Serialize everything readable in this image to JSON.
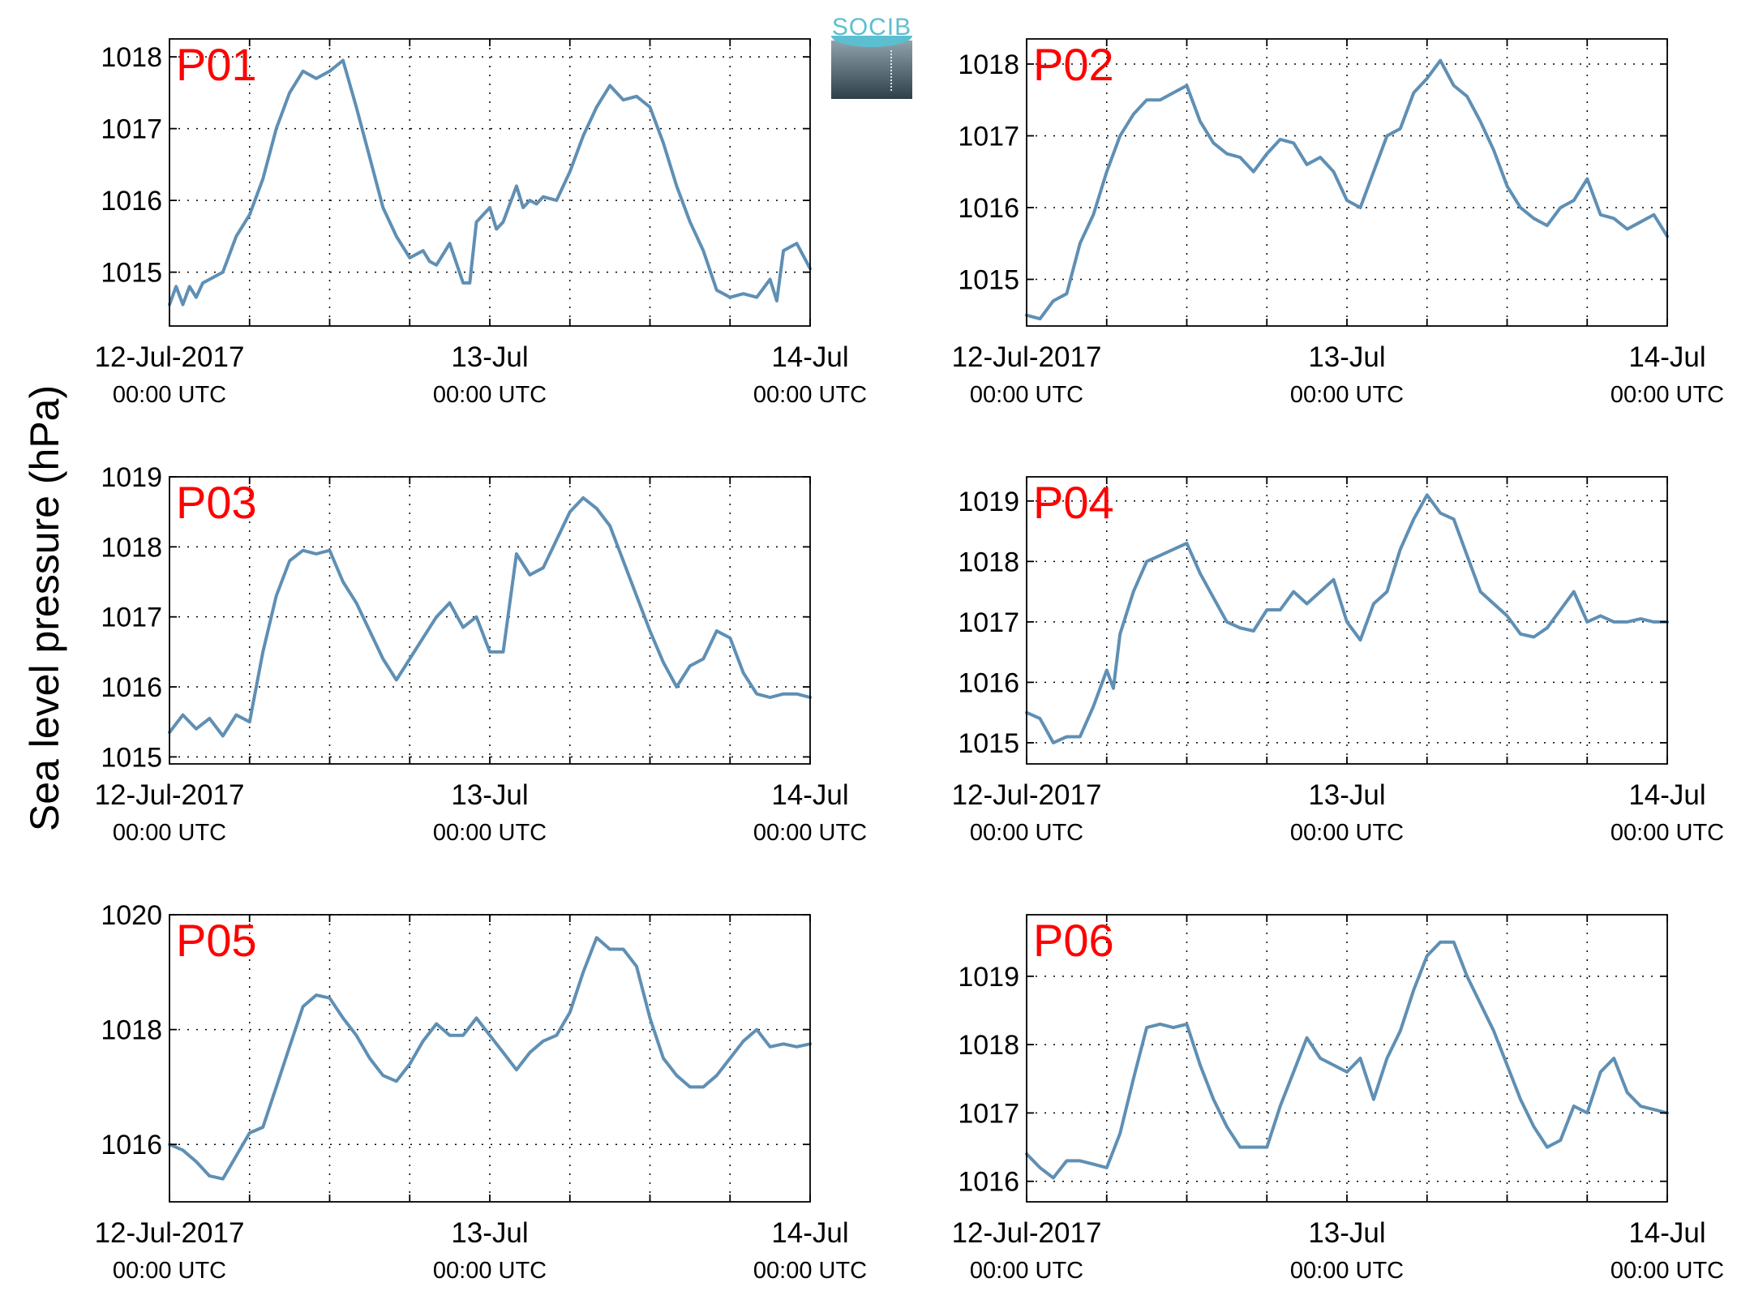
{
  "ylabel": "Sea level pressure (hPa)",
  "logo": {
    "text": "SOCIB"
  },
  "colors": {
    "line": "#5f8fb4",
    "panel_label": "#ff0000",
    "grid": "#000000"
  },
  "x_ticks": [
    {
      "date": "12-Jul-2017",
      "time": "00:00 UTC",
      "hour": 0
    },
    {
      "date": "13-Jul",
      "time": "00:00 UTC",
      "hour": 24
    },
    {
      "date": "14-Jul",
      "time": "00:00 UTC",
      "hour": 48
    }
  ],
  "chart_data": [
    {
      "type": "line",
      "title": "P01",
      "x_unit": "hours since 12-Jul-2017 00:00 UTC",
      "xlim": [
        0,
        48
      ],
      "ylim": [
        1014.25,
        1018.25
      ],
      "yticks": [
        1015,
        1016,
        1017,
        1018
      ],
      "grid": true,
      "series": [
        {
          "x": [
            0,
            0.5,
            1,
            1.5,
            2,
            2.5,
            3,
            4,
            5,
            6,
            7,
            8,
            9,
            10,
            11,
            12,
            13,
            14,
            15,
            16,
            17,
            18,
            19,
            19.5,
            20,
            21,
            22,
            22.5,
            23,
            24,
            24.5,
            25,
            26,
            26.5,
            27,
            27.5,
            28,
            29,
            30,
            31,
            32,
            33,
            34,
            35,
            36,
            37,
            38,
            39,
            40,
            41,
            42,
            43,
            44,
            45,
            45.5,
            46,
            46.5,
            47,
            48
          ],
          "y": [
            1014.55,
            1014.8,
            1014.55,
            1014.8,
            1014.65,
            1014.85,
            1014.9,
            1015.0,
            1015.5,
            1015.8,
            1016.3,
            1017.0,
            1017.5,
            1017.8,
            1017.7,
            1017.8,
            1017.95,
            1017.3,
            1016.6,
            1015.9,
            1015.5,
            1015.2,
            1015.3,
            1015.15,
            1015.1,
            1015.4,
            1014.85,
            1014.85,
            1015.7,
            1015.9,
            1015.6,
            1015.7,
            1016.2,
            1015.9,
            1016.0,
            1015.95,
            1016.05,
            1016.0,
            1016.4,
            1016.9,
            1017.3,
            1017.6,
            1017.4,
            1017.45,
            1017.3,
            1016.8,
            1016.2,
            1015.7,
            1015.3,
            1014.75,
            1014.65,
            1014.7,
            1014.65,
            1014.9,
            1014.6,
            1015.3,
            1015.35,
            1015.4,
            1015.05
          ]
        }
      ]
    },
    {
      "type": "line",
      "title": "P02",
      "x_unit": "hours since 12-Jul-2017 00:00 UTC",
      "xlim": [
        0,
        48
      ],
      "ylim": [
        1014.35,
        1018.35
      ],
      "yticks": [
        1015,
        1016,
        1017,
        1018
      ],
      "grid": true,
      "series": [
        {
          "x": [
            0,
            1,
            2,
            3,
            4,
            5,
            6,
            7,
            8,
            9,
            10,
            11,
            12,
            13,
            14,
            15,
            16,
            17,
            18,
            19,
            20,
            21,
            22,
            23,
            24,
            25,
            26,
            27,
            28,
            29,
            30,
            31,
            32,
            33,
            34,
            35,
            36,
            37,
            38,
            39,
            40,
            41,
            42,
            43,
            44,
            45,
            46,
            47,
            48
          ],
          "y": [
            1014.5,
            1014.45,
            1014.7,
            1014.8,
            1015.5,
            1015.9,
            1016.5,
            1017.0,
            1017.3,
            1017.5,
            1017.5,
            1017.6,
            1017.7,
            1017.2,
            1016.9,
            1016.75,
            1016.7,
            1016.5,
            1016.75,
            1016.95,
            1016.9,
            1016.6,
            1016.7,
            1016.5,
            1016.1,
            1016.0,
            1016.5,
            1017.0,
            1017.1,
            1017.6,
            1017.8,
            1018.05,
            1017.7,
            1017.55,
            1017.2,
            1016.8,
            1016.3,
            1016.0,
            1015.85,
            1015.75,
            1016.0,
            1016.1,
            1016.4,
            1015.9,
            1015.85,
            1015.7,
            1015.8,
            1015.9,
            1015.6
          ]
        }
      ]
    },
    {
      "type": "line",
      "title": "P03",
      "x_unit": "hours since 12-Jul-2017 00:00 UTC",
      "xlim": [
        0,
        48
      ],
      "ylim": [
        1014.9,
        1019.0
      ],
      "yticks": [
        1015,
        1016,
        1017,
        1018,
        1019
      ],
      "grid": true,
      "series": [
        {
          "x": [
            0,
            1,
            2,
            3,
            4,
            5,
            6,
            7,
            8,
            9,
            10,
            11,
            12,
            13,
            14,
            15,
            16,
            17,
            18,
            19,
            20,
            21,
            22,
            23,
            24,
            25,
            26,
            27,
            28,
            29,
            30,
            31,
            32,
            33,
            34,
            35,
            36,
            37,
            38,
            39,
            40,
            41,
            42,
            43,
            44,
            45,
            46,
            47,
            48
          ],
          "y": [
            1015.35,
            1015.6,
            1015.4,
            1015.55,
            1015.3,
            1015.6,
            1015.5,
            1016.5,
            1017.3,
            1017.8,
            1017.95,
            1017.9,
            1017.95,
            1017.5,
            1017.2,
            1016.8,
            1016.4,
            1016.1,
            1016.4,
            1016.7,
            1017.0,
            1017.2,
            1016.85,
            1017.0,
            1016.5,
            1016.5,
            1017.9,
            1017.6,
            1017.7,
            1018.1,
            1018.5,
            1018.7,
            1018.55,
            1018.3,
            1017.8,
            1017.3,
            1016.8,
            1016.35,
            1016.0,
            1016.3,
            1016.4,
            1016.8,
            1016.7,
            1016.2,
            1015.9,
            1015.85,
            1015.9,
            1015.9,
            1015.85
          ]
        }
      ]
    },
    {
      "type": "line",
      "title": "P04",
      "x_unit": "hours since 12-Jul-2017 00:00 UTC",
      "xlim": [
        0,
        48
      ],
      "ylim": [
        1014.65,
        1019.4
      ],
      "yticks": [
        1015,
        1016,
        1017,
        1018,
        1019
      ],
      "grid": true,
      "series": [
        {
          "x": [
            0,
            1,
            2,
            3,
            4,
            5,
            6,
            6.5,
            7,
            8,
            9,
            10,
            11,
            12,
            13,
            14,
            15,
            16,
            17,
            18,
            19,
            20,
            21,
            22,
            23,
            24,
            25,
            26,
            27,
            28,
            29,
            30,
            31,
            32,
            33,
            34,
            35,
            36,
            37,
            38,
            39,
            40,
            41,
            42,
            43,
            44,
            45,
            46,
            47,
            48
          ],
          "y": [
            1015.5,
            1015.4,
            1015.0,
            1015.1,
            1015.1,
            1015.6,
            1016.2,
            1015.9,
            1016.8,
            1017.5,
            1018.0,
            1018.1,
            1018.2,
            1018.3,
            1017.8,
            1017.4,
            1017.0,
            1016.9,
            1016.85,
            1017.2,
            1017.2,
            1017.5,
            1017.3,
            1017.5,
            1017.7,
            1017.0,
            1016.7,
            1017.3,
            1017.5,
            1018.2,
            1018.7,
            1019.1,
            1018.8,
            1018.7,
            1018.1,
            1017.5,
            1017.3,
            1017.1,
            1016.8,
            1016.75,
            1016.9,
            1017.2,
            1017.5,
            1017.0,
            1017.1,
            1017.0,
            1017.0,
            1017.05,
            1017.0,
            1017.0
          ]
        }
      ]
    },
    {
      "type": "line",
      "title": "P05",
      "x_unit": "hours since 12-Jul-2017 00:00 UTC",
      "xlim": [
        0,
        48
      ],
      "ylim": [
        1015.0,
        1020.0
      ],
      "yticks": [
        1016,
        1018,
        1020
      ],
      "grid": true,
      "series": [
        {
          "x": [
            0,
            1,
            2,
            3,
            4,
            5,
            6,
            7,
            8,
            9,
            10,
            11,
            12,
            13,
            14,
            15,
            16,
            17,
            18,
            19,
            20,
            21,
            22,
            23,
            24,
            25,
            26,
            27,
            28,
            29,
            30,
            31,
            32,
            33,
            34,
            35,
            36,
            37,
            38,
            39,
            40,
            41,
            42,
            43,
            44,
            45,
            46,
            47,
            48
          ],
          "y": [
            1016.0,
            1015.9,
            1015.7,
            1015.45,
            1015.4,
            1015.8,
            1016.2,
            1016.3,
            1017.0,
            1017.7,
            1018.4,
            1018.6,
            1018.55,
            1018.2,
            1017.9,
            1017.5,
            1017.2,
            1017.1,
            1017.4,
            1017.8,
            1018.1,
            1017.9,
            1017.9,
            1018.2,
            1017.9,
            1017.6,
            1017.3,
            1017.6,
            1017.8,
            1017.9,
            1018.3,
            1019.0,
            1019.6,
            1019.4,
            1019.4,
            1019.1,
            1018.2,
            1017.5,
            1017.2,
            1017.0,
            1017.0,
            1017.2,
            1017.5,
            1017.8,
            1018.0,
            1017.7,
            1017.75,
            1017.7,
            1017.75
          ]
        }
      ]
    },
    {
      "type": "line",
      "title": "P06",
      "x_unit": "hours since 12-Jul-2017 00:00 UTC",
      "xlim": [
        0,
        48
      ],
      "ylim": [
        1015.7,
        1019.9
      ],
      "yticks": [
        1016,
        1017,
        1018,
        1019
      ],
      "grid": true,
      "series": [
        {
          "x": [
            0,
            1,
            2,
            3,
            4,
            5,
            6,
            7,
            8,
            9,
            10,
            11,
            12,
            13,
            14,
            15,
            16,
            17,
            18,
            19,
            20,
            21,
            22,
            23,
            24,
            25,
            26,
            27,
            28,
            29,
            30,
            31,
            32,
            33,
            34,
            35,
            36,
            37,
            38,
            39,
            40,
            41,
            42,
            43,
            44,
            45,
            46,
            47,
            48
          ],
          "y": [
            1016.4,
            1016.2,
            1016.05,
            1016.3,
            1016.3,
            1016.25,
            1016.2,
            1016.7,
            1017.5,
            1018.25,
            1018.3,
            1018.25,
            1018.3,
            1017.7,
            1017.2,
            1016.8,
            1016.5,
            1016.5,
            1016.5,
            1017.1,
            1017.6,
            1018.1,
            1017.8,
            1017.7,
            1017.6,
            1017.8,
            1017.2,
            1017.8,
            1018.2,
            1018.8,
            1019.3,
            1019.5,
            1019.5,
            1019.0,
            1018.6,
            1018.2,
            1017.7,
            1017.2,
            1016.8,
            1016.5,
            1016.6,
            1017.1,
            1017.0,
            1017.6,
            1017.8,
            1017.3,
            1017.1,
            1017.05,
            1017.0
          ]
        }
      ]
    }
  ]
}
